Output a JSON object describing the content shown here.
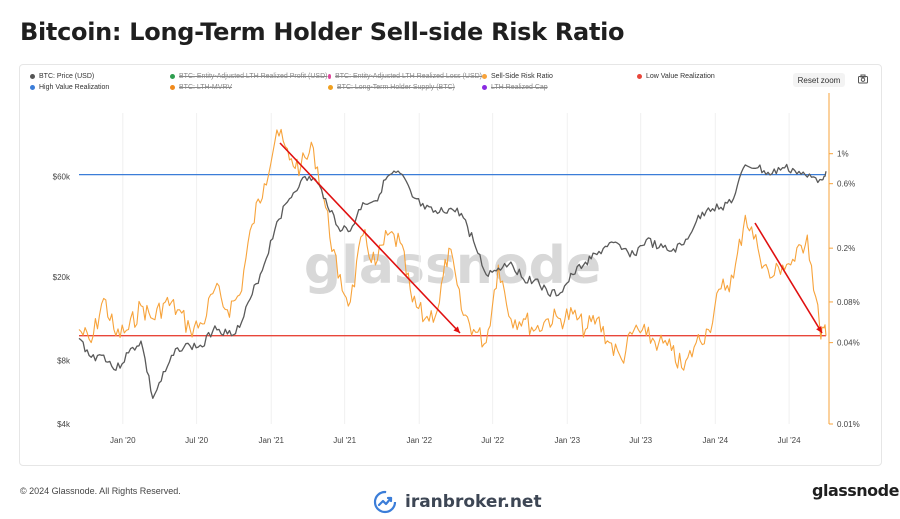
{
  "page": {
    "title": "Bitcoin: Long-Term Holder Sell-side Risk Ratio",
    "copyright": "© 2024 Glassnode. All Rights Reserved.",
    "brand": "glassnode",
    "watermark": "glassnode",
    "site": "iranbroker.net",
    "reset_zoom_label": "Reset zoom"
  },
  "legend": [
    {
      "label": "BTC: Price (USD)",
      "color": "#555555",
      "active": true
    },
    {
      "label": "BTC: Entity-Adjusted LTH Realized Profit (USD)",
      "color": "#2e9e4f",
      "active": false
    },
    {
      "label": "BTC: Entity-Adjusted LTH Realized Loss (USD)",
      "color": "#e0459a",
      "active": false
    },
    {
      "label": "Sell-Side Risk Ratio",
      "color": "#f7a33b",
      "active": true
    },
    {
      "label": "Low Value Realization",
      "color": "#e8463a",
      "active": true
    },
    {
      "label": "High Value Realization",
      "color": "#3b7dd8",
      "active": true
    },
    {
      "label": "BTC: LTH-MVRV",
      "color": "#f08a1c",
      "active": false
    },
    {
      "label": "BTC: Long-Term Holder Supply (BTC)",
      "color": "#f0a020",
      "active": false
    },
    {
      "label": "LTH Realized Cap",
      "color": "#8a2be2",
      "active": false
    }
  ],
  "colors": {
    "price": "#5a5a5a",
    "ratio": "#f7a33b",
    "low_line": "#e8463a",
    "high_line": "#3b7dd8",
    "arrow": "#e01010",
    "right_axis": "#f7a33b"
  },
  "chart_data": {
    "type": "line",
    "title": "Bitcoin: Long-Term Holder Sell-side Risk Ratio",
    "x_ticks": [
      "Jan '20",
      "Jul '20",
      "Jan '21",
      "Jul '21",
      "Jan '22",
      "Jul '22",
      "Jan '23",
      "Jul '23",
      "Jan '24",
      "Jul '24"
    ],
    "x_tick_dates": [
      "2020-01-01",
      "2020-07-01",
      "2021-01-01",
      "2021-07-01",
      "2022-01-01",
      "2022-07-01",
      "2023-01-01",
      "2023-07-01",
      "2024-01-01",
      "2024-07-01"
    ],
    "x_range": [
      "2019-09-15",
      "2024-09-30"
    ],
    "y_left": {
      "scale": "log",
      "ticks": [
        "$4k",
        "$8k",
        "$20k",
        "$60k"
      ],
      "tick_values": [
        4000,
        8000,
        20000,
        60000
      ],
      "range": [
        4000,
        120000
      ]
    },
    "y_right": {
      "scale": "log",
      "ticks": [
        "0.01%",
        "0.04%",
        "0.08%",
        "0.2%",
        "0.6%",
        "1%"
      ],
      "tick_values": [
        0.01,
        0.04,
        0.08,
        0.2,
        0.6,
        1
      ],
      "range": [
        0.01,
        2.0
      ]
    },
    "thresholds": {
      "low_value_realization": 0.045,
      "high_value_realization": 0.7
    },
    "series": [
      {
        "name": "BTC: Price (USD)",
        "axis": "left",
        "x": [
          "2019-09-15",
          "2019-10-15",
          "2019-11-15",
          "2019-12-15",
          "2020-01-15",
          "2020-02-15",
          "2020-03-15",
          "2020-04-15",
          "2020-05-15",
          "2020-06-15",
          "2020-07-15",
          "2020-08-15",
          "2020-09-15",
          "2020-10-15",
          "2020-11-15",
          "2020-12-15",
          "2021-01-15",
          "2021-02-15",
          "2021-03-15",
          "2021-04-15",
          "2021-05-15",
          "2021-06-15",
          "2021-07-15",
          "2021-08-15",
          "2021-09-15",
          "2021-10-15",
          "2021-11-15",
          "2021-12-15",
          "2022-01-15",
          "2022-02-15",
          "2022-03-15",
          "2022-04-15",
          "2022-05-15",
          "2022-06-15",
          "2022-07-15",
          "2022-08-15",
          "2022-09-15",
          "2022-10-15",
          "2022-11-15",
          "2022-12-15",
          "2023-01-15",
          "2023-02-15",
          "2023-03-15",
          "2023-04-15",
          "2023-05-15",
          "2023-06-15",
          "2023-07-15",
          "2023-08-15",
          "2023-09-15",
          "2023-10-15",
          "2023-11-15",
          "2023-12-15",
          "2024-01-15",
          "2024-02-15",
          "2024-03-15",
          "2024-04-15",
          "2024-05-15",
          "2024-06-15",
          "2024-07-15",
          "2024-08-15",
          "2024-09-15",
          "2024-09-30"
        ],
        "values": [
          10200,
          8300,
          8500,
          7200,
          8700,
          9900,
          5300,
          7100,
          9200,
          9400,
          9300,
          11700,
          10700,
          11500,
          16500,
          23000,
          36500,
          47000,
          57000,
          59000,
          47000,
          34500,
          33000,
          45000,
          46000,
          60000,
          62000,
          48000,
          42000,
          40000,
          42000,
          40000,
          29500,
          20500,
          22000,
          23500,
          19500,
          19500,
          16500,
          16800,
          20500,
          23500,
          25500,
          29000,
          27000,
          25500,
          30000,
          27500,
          26500,
          28500,
          36500,
          42500,
          42800,
          47000,
          68000,
          66000,
          61000,
          66000,
          64000,
          59500,
          58000,
          63500
        ]
      },
      {
        "name": "Sell-Side Risk Ratio",
        "axis": "right",
        "x": [
          "2019-09-15",
          "2019-10-15",
          "2019-11-15",
          "2019-12-15",
          "2020-01-15",
          "2020-02-15",
          "2020-03-15",
          "2020-04-15",
          "2020-05-15",
          "2020-06-15",
          "2020-07-15",
          "2020-08-15",
          "2020-09-15",
          "2020-10-15",
          "2020-11-15",
          "2020-12-15",
          "2021-01-15",
          "2021-02-15",
          "2021-03-15",
          "2021-04-15",
          "2021-05-15",
          "2021-06-15",
          "2021-07-15",
          "2021-08-15",
          "2021-09-15",
          "2021-10-15",
          "2021-11-15",
          "2021-12-15",
          "2022-01-15",
          "2022-02-15",
          "2022-03-15",
          "2022-04-15",
          "2022-05-15",
          "2022-06-15",
          "2022-07-15",
          "2022-08-15",
          "2022-09-15",
          "2022-10-15",
          "2022-11-15",
          "2022-12-15",
          "2023-01-15",
          "2023-02-15",
          "2023-03-15",
          "2023-04-15",
          "2023-05-15",
          "2023-06-15",
          "2023-07-15",
          "2023-08-15",
          "2023-09-15",
          "2023-10-15",
          "2023-11-15",
          "2023-12-15",
          "2024-01-15",
          "2024-02-15",
          "2024-03-15",
          "2024-04-15",
          "2024-05-15",
          "2024-06-15",
          "2024-07-15",
          "2024-08-15",
          "2024-09-15",
          "2024-09-30"
        ],
        "values": [
          0.05,
          0.04,
          0.085,
          0.045,
          0.05,
          0.075,
          0.06,
          0.08,
          0.07,
          0.05,
          0.055,
          0.1,
          0.07,
          0.09,
          0.3,
          0.6,
          1.5,
          0.9,
          0.8,
          1.1,
          0.4,
          0.12,
          0.08,
          0.25,
          0.15,
          0.25,
          0.22,
          0.08,
          0.06,
          0.07,
          0.2,
          0.07,
          0.05,
          0.04,
          0.15,
          0.06,
          0.06,
          0.05,
          0.06,
          0.06,
          0.065,
          0.05,
          0.06,
          0.04,
          0.03,
          0.05,
          0.045,
          0.04,
          0.035,
          0.025,
          0.04,
          0.05,
          0.1,
          0.12,
          0.35,
          0.2,
          0.12,
          0.15,
          0.16,
          0.25,
          0.05,
          0.045
        ]
      }
    ]
  }
}
